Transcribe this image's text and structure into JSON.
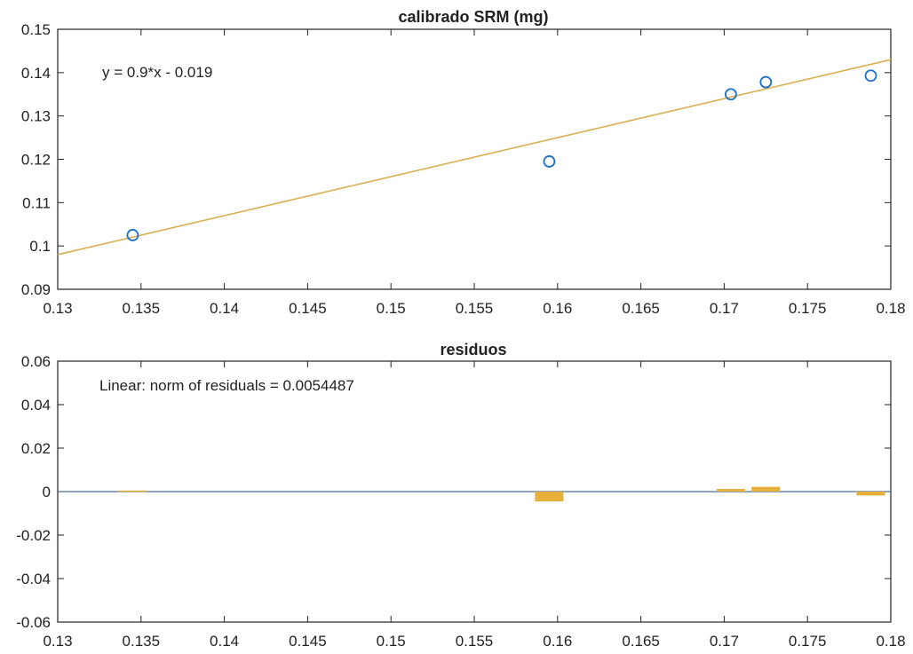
{
  "chart_data": [
    {
      "type": "scatter",
      "title": "calibrado SRM (mg)",
      "annotation": "y = 0.9*x - 0.019",
      "xlim": [
        0.13,
        0.18
      ],
      "ylim": [
        0.09,
        0.15
      ],
      "x_ticks": [
        "0.13",
        "0.135",
        "0.14",
        "0.145",
        "0.15",
        "0.155",
        "0.16",
        "0.165",
        "0.17",
        "0.175",
        "0.18"
      ],
      "y_ticks": [
        "0.09",
        "0.1",
        "0.11",
        "0.12",
        "0.13",
        "0.14",
        "0.15"
      ],
      "series": [
        {
          "x": [
            0.1345,
            0.1595,
            0.1704,
            0.1725,
            0.1788
          ],
          "y": [
            0.1025,
            0.1195,
            0.135,
            0.1378,
            0.1393
          ],
          "marker": "circle",
          "color": "#1f6fc4"
        }
      ],
      "fit_line": {
        "slope": 0.9,
        "intercept": -0.019,
        "color": "#d9b050"
      },
      "grid": false
    },
    {
      "type": "bar",
      "title": "residuos",
      "annotation": "Linear: norm of residuals = 0.0054487",
      "xlim": [
        0.13,
        0.18
      ],
      "ylim": [
        -0.06,
        0.06
      ],
      "x_ticks": [
        "0.13",
        "0.135",
        "0.14",
        "0.145",
        "0.15",
        "0.155",
        "0.16",
        "0.165",
        "0.17",
        "0.175",
        "0.18"
      ],
      "y_ticks": [
        "0.06",
        "0.04",
        "0.02",
        "0",
        "-0.02",
        "-0.04",
        "-0.06"
      ],
      "series": [
        {
          "x": [
            0.1345,
            0.1595,
            0.1704,
            0.1725,
            0.1788
          ],
          "values": [
            0.0005,
            -0.0045,
            0.0012,
            0.0022,
            -0.0018
          ],
          "color": "#e6b03a"
        }
      ],
      "zero_line": true,
      "grid": false
    }
  ]
}
